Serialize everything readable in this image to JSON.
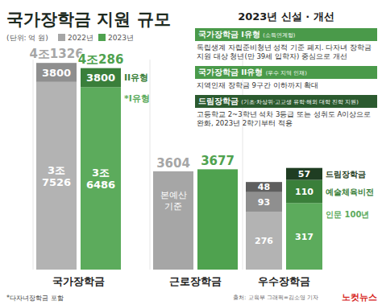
{
  "chart_data": [
    {
      "type": "bar",
      "stacked": true,
      "title": "국가장학금 지원 규모",
      "subtitle": "(단위: 억 원)",
      "xlabel": "국가장학금",
      "legend": "top",
      "categories": [
        "2022년",
        "2023년"
      ],
      "colors": [
        "#a6a6a6",
        "#4fa24f"
      ],
      "ylim": [
        0,
        42000
      ],
      "tick_labels": false,
      "data_labels": true,
      "series": [
        {
          "name": "*I유형",
          "colors": [
            "#b3b3b3",
            "#5cab5c"
          ],
          "values": [
            37526,
            36486
          ],
          "value_labels": [
            "3조\n7526",
            "3조\n6486"
          ]
        },
        {
          "name": "II유형",
          "colors": [
            "#8f8f8f",
            "#3a7f3a"
          ],
          "values": [
            3800,
            3800
          ]
        }
      ],
      "totals": [
        41326,
        40286
      ],
      "total_labels": [
        "4조1326",
        "4조286"
      ],
      "note": "*다자녀장학금 포함"
    },
    {
      "type": "bar",
      "xlabel": "근로장학금",
      "categories": [
        null,
        null
      ],
      "colors": [
        "#a6a6a6",
        "#4fa24f"
      ],
      "values": [
        3604,
        3677
      ],
      "ylim": [
        0,
        7700
      ],
      "tick_labels": false,
      "data_labels": true,
      "annotation": "본예산\n기준"
    },
    {
      "type": "bar",
      "stacked": true,
      "xlabel": "우수장학금",
      "categories": [
        null,
        null
      ],
      "ylim": [
        0,
        1000
      ],
      "tick_labels": false,
      "data_labels": true,
      "series": [
        {
          "name": "인문 100년",
          "colors": [
            "#b3b3b3",
            "#5cab5c"
          ],
          "values": [
            276,
            317
          ]
        },
        {
          "name": "예술체육비전",
          "colors": [
            "#8f8f8f",
            "#3a7f3a"
          ],
          "values": [
            93,
            110
          ]
        },
        {
          "name": "드림장학금",
          "colors": [
            "#5e5e5e",
            "#1f3d22"
          ],
          "values": [
            48,
            57
          ]
        }
      ]
    }
  ],
  "panel": {
    "title": "2023년 신설 · 개선",
    "items": [
      {
        "heading": "국가장학금 I유형",
        "tag": "(소득연계형)",
        "text": "독립생계 자립준비청년 성적 기준 폐지. 다자녀 장학금 지원 대상 청년(만 39세 입학자) 중심으로 개선"
      },
      {
        "heading": "국가장학금 II유형",
        "tag": "(우수 지역 인재)",
        "text": "지역인재 장학금 9구간 이하까지 확대"
      },
      {
        "heading": "드림장학금",
        "tag": "(기초·차상위·고교생 유학·해외 대학 진학 지원)",
        "text": "고등학교 2~3학년 석차 3등급 또는 성취도 A이상으로 완화, 2023년 2학기부터 적용"
      }
    ]
  },
  "source": "출처: 교육부  그래픽=김소영 기자",
  "logo": "노컷뉴스"
}
